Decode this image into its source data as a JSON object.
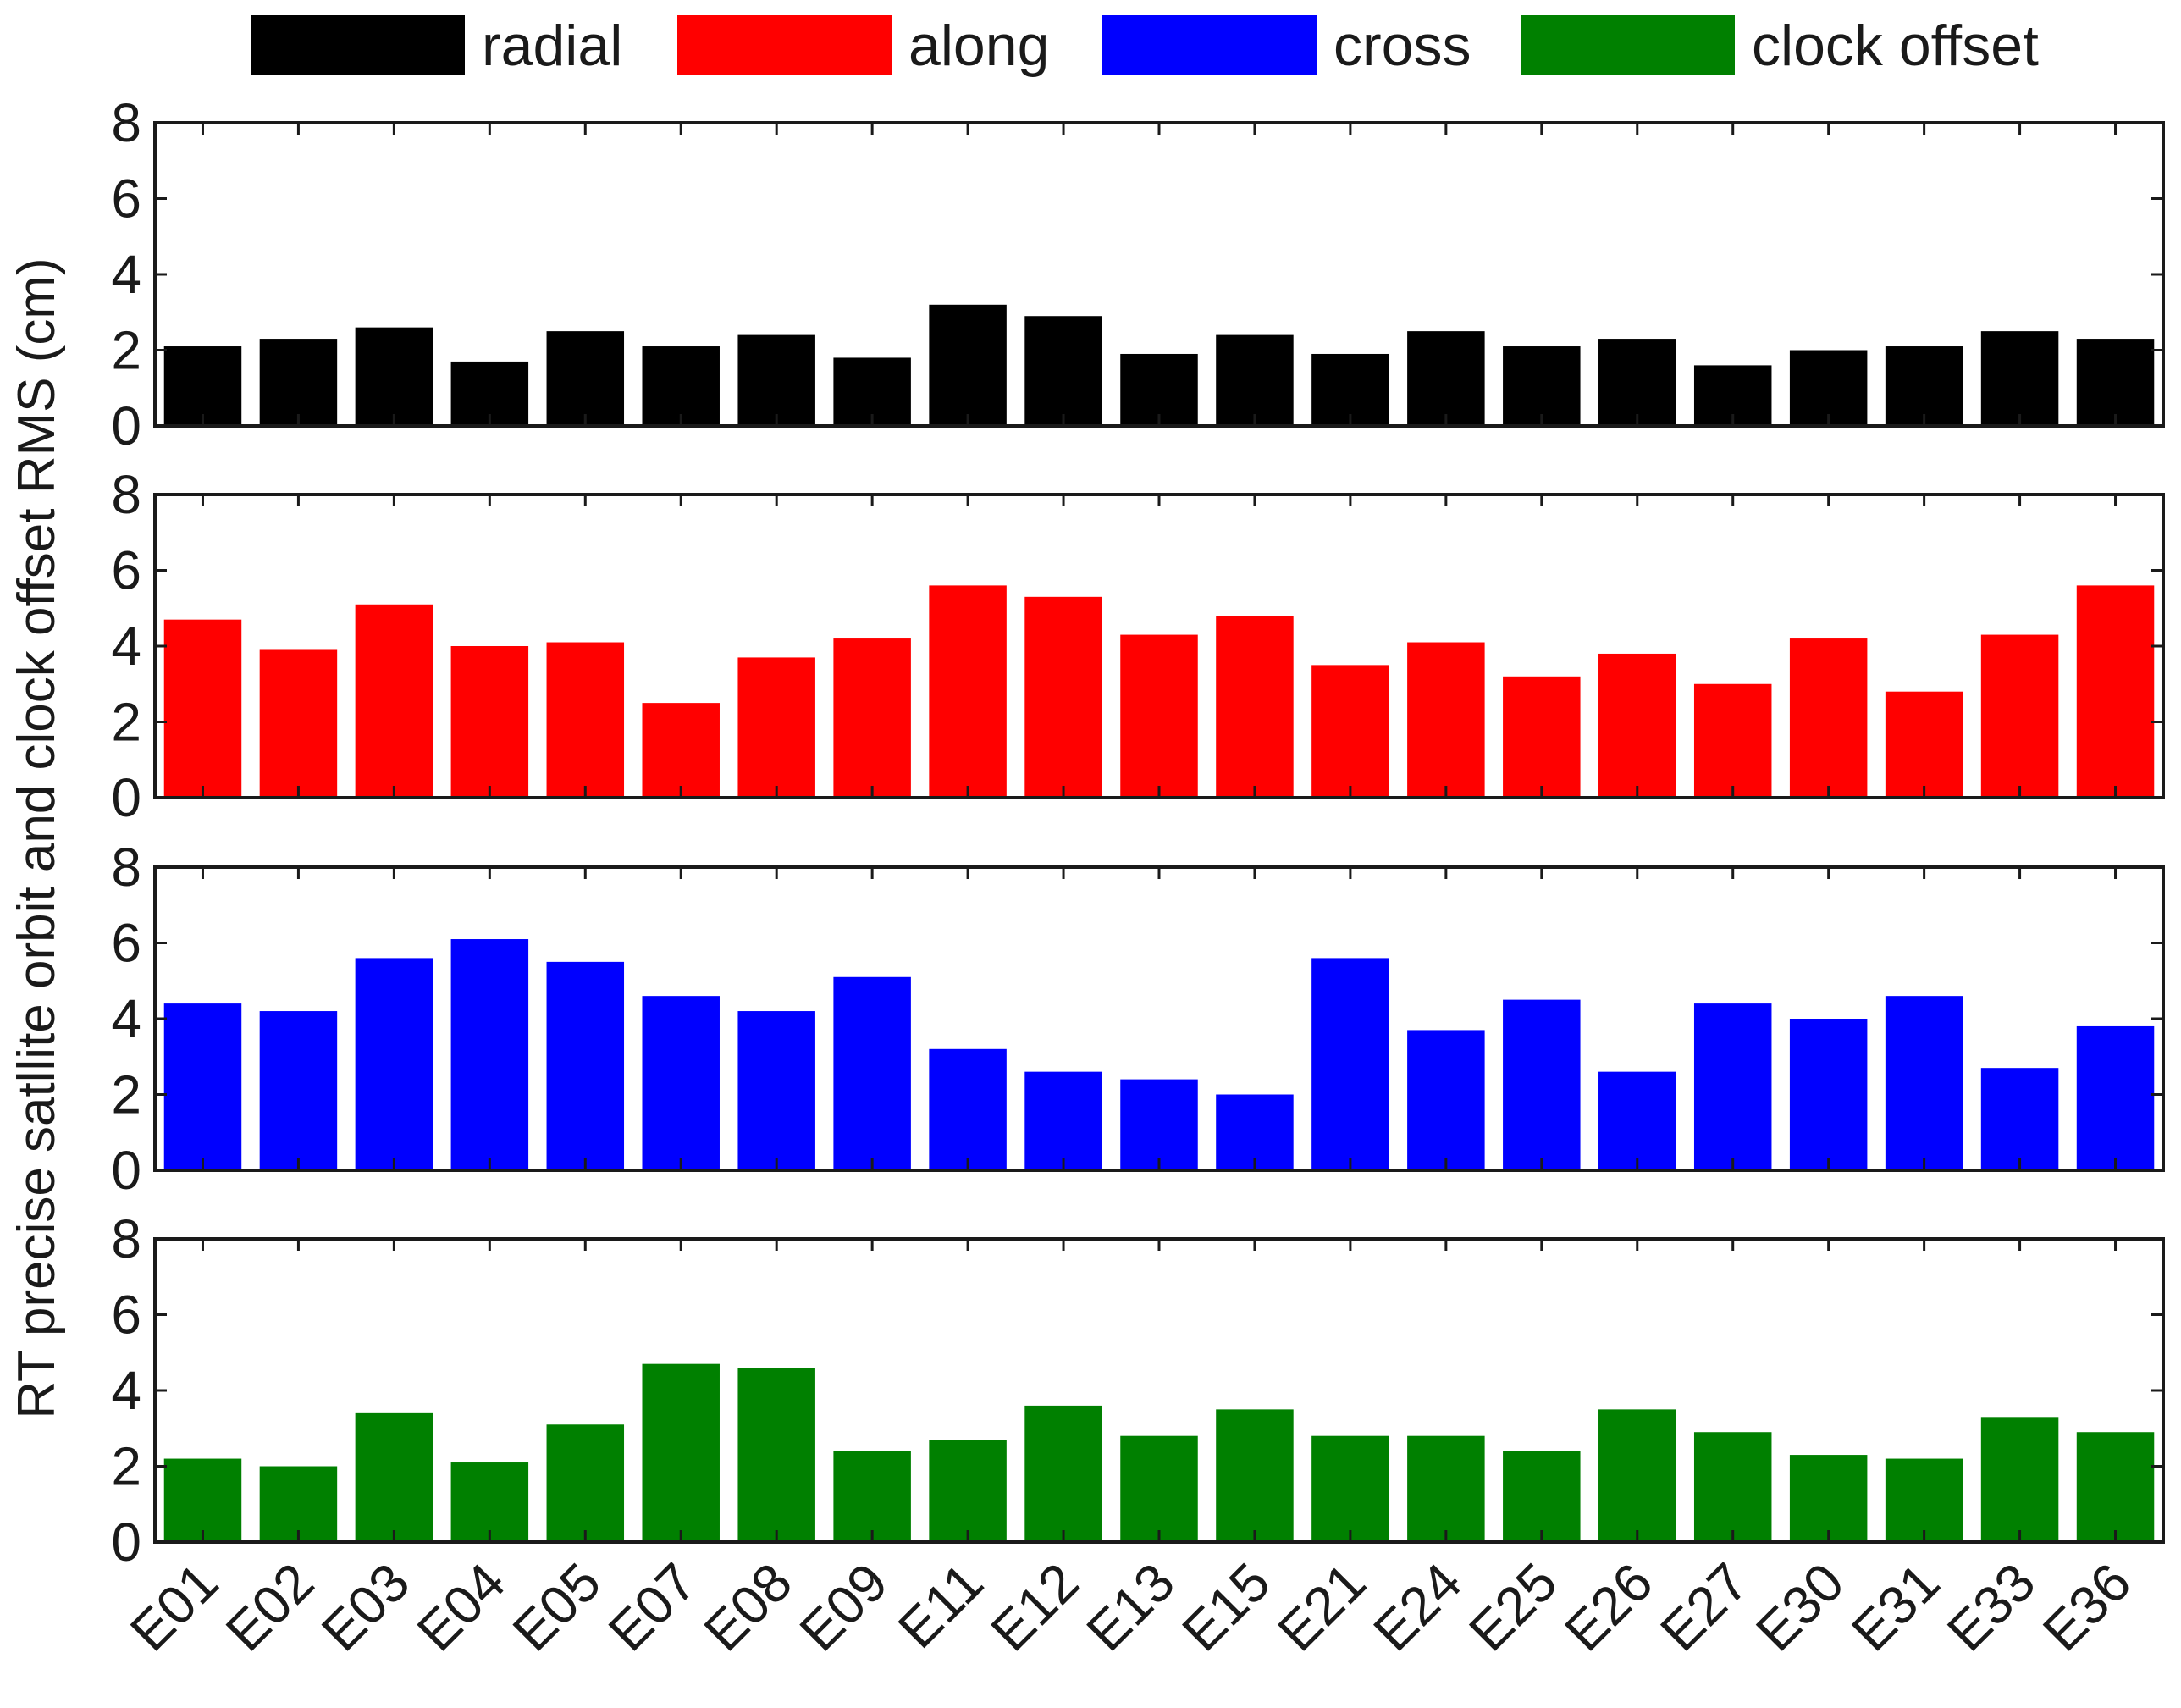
{
  "chart_data": {
    "type": "bar",
    "ylabel": "RT precise satllite orbit and clock offset RMS (cm)",
    "ylim": [
      0,
      8
    ],
    "yticks": [
      0,
      2,
      4,
      6,
      8
    ],
    "categories": [
      "E01",
      "E02",
      "E03",
      "E04",
      "E05",
      "E07",
      "E08",
      "E09",
      "E11",
      "E12",
      "E13",
      "E15",
      "E21",
      "E24",
      "E25",
      "E26",
      "E27",
      "E30",
      "E31",
      "E33",
      "E36"
    ],
    "legend_position": "top",
    "series": [
      {
        "name": "radial",
        "color": "#000000",
        "values": [
          2.1,
          2.3,
          2.6,
          1.7,
          2.5,
          2.1,
          2.4,
          1.8,
          3.2,
          2.9,
          1.9,
          2.4,
          1.9,
          2.5,
          2.1,
          2.3,
          1.6,
          2.0,
          2.1,
          2.5,
          2.3
        ]
      },
      {
        "name": "along",
        "color": "#ff0000",
        "values": [
          4.7,
          3.9,
          5.1,
          4.0,
          4.1,
          2.5,
          3.7,
          4.2,
          5.6,
          5.3,
          4.3,
          4.8,
          3.5,
          4.1,
          3.2,
          3.8,
          3.0,
          4.2,
          2.8,
          4.3,
          5.6
        ]
      },
      {
        "name": "cross",
        "color": "#0000ff",
        "values": [
          4.4,
          4.2,
          5.6,
          6.1,
          5.5,
          4.6,
          4.2,
          5.1,
          3.2,
          2.6,
          2.4,
          2.0,
          5.6,
          3.7,
          4.5,
          2.6,
          4.4,
          4.0,
          4.6,
          2.7,
          3.8
        ]
      },
      {
        "name": "clock offset",
        "color": "#008000",
        "values": [
          2.2,
          2.0,
          3.4,
          2.1,
          3.1,
          4.7,
          4.6,
          2.4,
          2.7,
          3.6,
          2.8,
          3.5,
          2.8,
          2.8,
          2.4,
          3.5,
          2.9,
          2.3,
          2.2,
          3.3,
          2.9
        ]
      }
    ]
  }
}
